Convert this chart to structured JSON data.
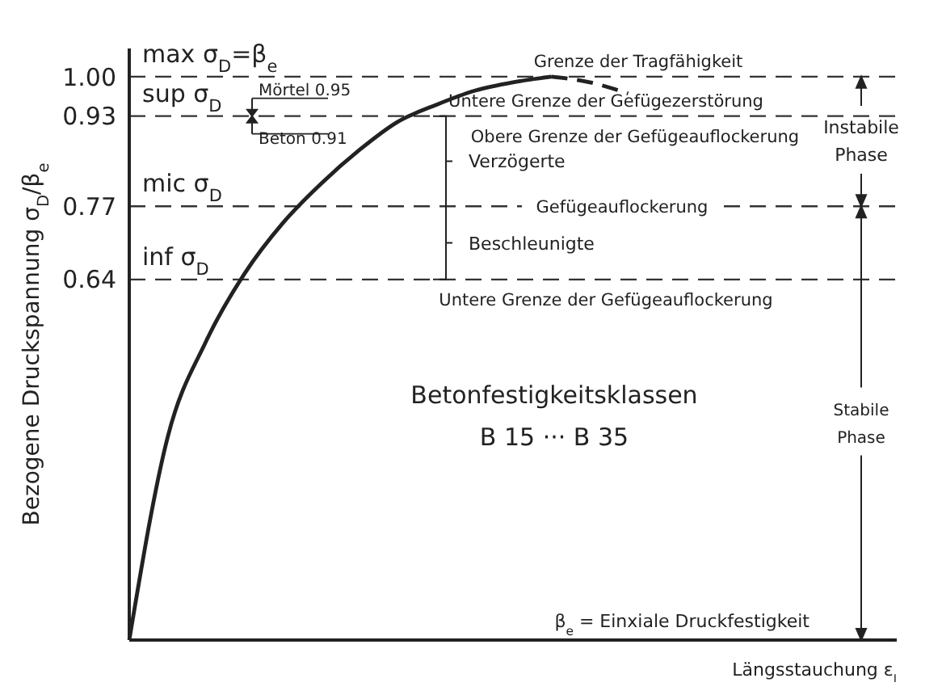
{
  "chart_data": {
    "type": "line",
    "xlabel": "Längsstauchung ε$_{l}$",
    "ylabel": "Bezogene Druckspannung σ$_{D}$/β$_{e}$",
    "categories": [
      null,
      null,
      null,
      null,
      null,
      null,
      null,
      null,
      null,
      null,
      null,
      null,
      null,
      null,
      null,
      null,
      null,
      null,
      null,
      null,
      null
    ],
    "series": [
      {
        "color": "#222222",
        "line_style": "solid",
        "values": [
          0,
          0.36,
          0.53,
          0.65,
          0.74,
          0.81,
          0.87,
          0.92,
          0.95,
          0.975,
          0.99,
          1.0,
          null,
          null,
          null,
          null,
          null,
          null,
          null,
          null,
          null
        ]
      },
      {
        "color": "#222222",
        "line_style": "dashed",
        "values": [
          null,
          null,
          null,
          null,
          null,
          null,
          null,
          null,
          null,
          null,
          null,
          1.0,
          0.99,
          0.97,
          null,
          null,
          null,
          null,
          null,
          null,
          null
        ]
      }
    ],
    "ylim": [
      0,
      1.05
    ],
    "yticks": [
      0.64,
      0.77,
      0.93,
      {
        "value": 1,
        "label": "1.00"
      }
    ],
    "tick_labels": "y",
    "marker": "none",
    "ref_lines": [
      {
        "axis": "y",
        "value": 1,
        "label": "Grenze der Tragfähigkeit",
        "line_style": "dashed",
        "color": "#333333"
      },
      {
        "axis": "y",
        "value": 0.93,
        "label": "Obere Grenze der Gefügeauflockerung",
        "line_style": "dashed",
        "color": "#333333"
      },
      {
        "axis": "y",
        "value": 0.77,
        "label": "Gefügeauflockerung",
        "line_style": "dashed",
        "color": "#333333"
      },
      {
        "axis": "y",
        "value": 0.64,
        "label": "Untere Grenze der Gefügeauflockerung",
        "line_style": "dashed",
        "color": "#333333"
      }
    ],
    "annotations": [
      {
        "text": "max σ$_{D}$=β$_{e}$",
        "y": 1
      },
      {
        "text": "sup σ$_{D}$",
        "y": 0.93
      },
      {
        "text": "mic σ$_{D}$",
        "y": 0.77
      },
      {
        "text": "inf σ$_{D}$",
        "y": 0.64
      },
      {
        "text": "Untere Grenze der Gefügezerstörung",
        "y": 0.93
      },
      "Mörtel 0.95",
      "Beton 0.91",
      "Verzögerte",
      "Beschleunigte",
      "Instabile Phase",
      "Stabile Phase",
      "Betonfestigkeitsklassen",
      "B 15 ··· B 35",
      "β$_{e}$ = Einxiale Druckfestigkeit"
    ]
  }
}
